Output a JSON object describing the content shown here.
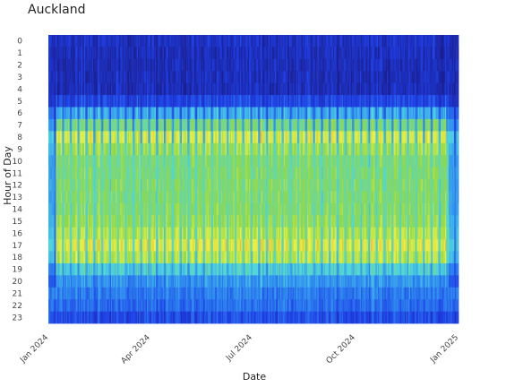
{
  "chart_data": {
    "type": "heatmap",
    "title": "Auckland",
    "xlabel": "Date",
    "ylabel": "Hour of Day",
    "x_range": [
      "2024-01-01",
      "2024-12-31"
    ],
    "x_ticks": [
      "Jan 2024",
      "Apr 2024",
      "Jul 2024",
      "Oct 2024",
      "Jan 2025"
    ],
    "x_tick_dates": [
      "2024-01-01",
      "2024-04-01",
      "2024-07-01",
      "2024-10-01",
      "2025-01-01"
    ],
    "hours": [
      0,
      1,
      2,
      3,
      4,
      5,
      6,
      7,
      8,
      9,
      10,
      11,
      12,
      13,
      14,
      15,
      16,
      17,
      18,
      19,
      20,
      21,
      22,
      23
    ],
    "hour_labels": [
      "0",
      "1",
      "2",
      "3",
      "4",
      "5",
      "6",
      "7",
      "8",
      "9",
      "10",
      "11",
      "12",
      "13",
      "14",
      "15",
      "16",
      "17",
      "18",
      "19",
      "20",
      "21",
      "22",
      "23"
    ],
    "value_range": [
      0,
      1
    ],
    "weekday_hour_profile": [
      0.1,
      0.08,
      0.08,
      0.08,
      0.08,
      0.18,
      0.42,
      0.62,
      0.8,
      0.7,
      0.63,
      0.63,
      0.64,
      0.64,
      0.65,
      0.68,
      0.74,
      0.82,
      0.75,
      0.5,
      0.36,
      0.3,
      0.27,
      0.2
    ],
    "weekend_hour_profile": [
      0.1,
      0.08,
      0.08,
      0.08,
      0.08,
      0.15,
      0.26,
      0.36,
      0.44,
      0.5,
      0.54,
      0.56,
      0.56,
      0.56,
      0.55,
      0.54,
      0.54,
      0.54,
      0.5,
      0.4,
      0.33,
      0.28,
      0.25,
      0.18
    ],
    "colormap": [
      "#1b1f8f",
      "#1f3fe6",
      "#2f8cf0",
      "#4fd6dd",
      "#8fd84a",
      "#f0f040",
      "#f08030"
    ],
    "holiday_dip_periods": [
      "2023-12-24 to 2024-01-07",
      "2024-12-23 to 2024-12-31"
    ]
  }
}
